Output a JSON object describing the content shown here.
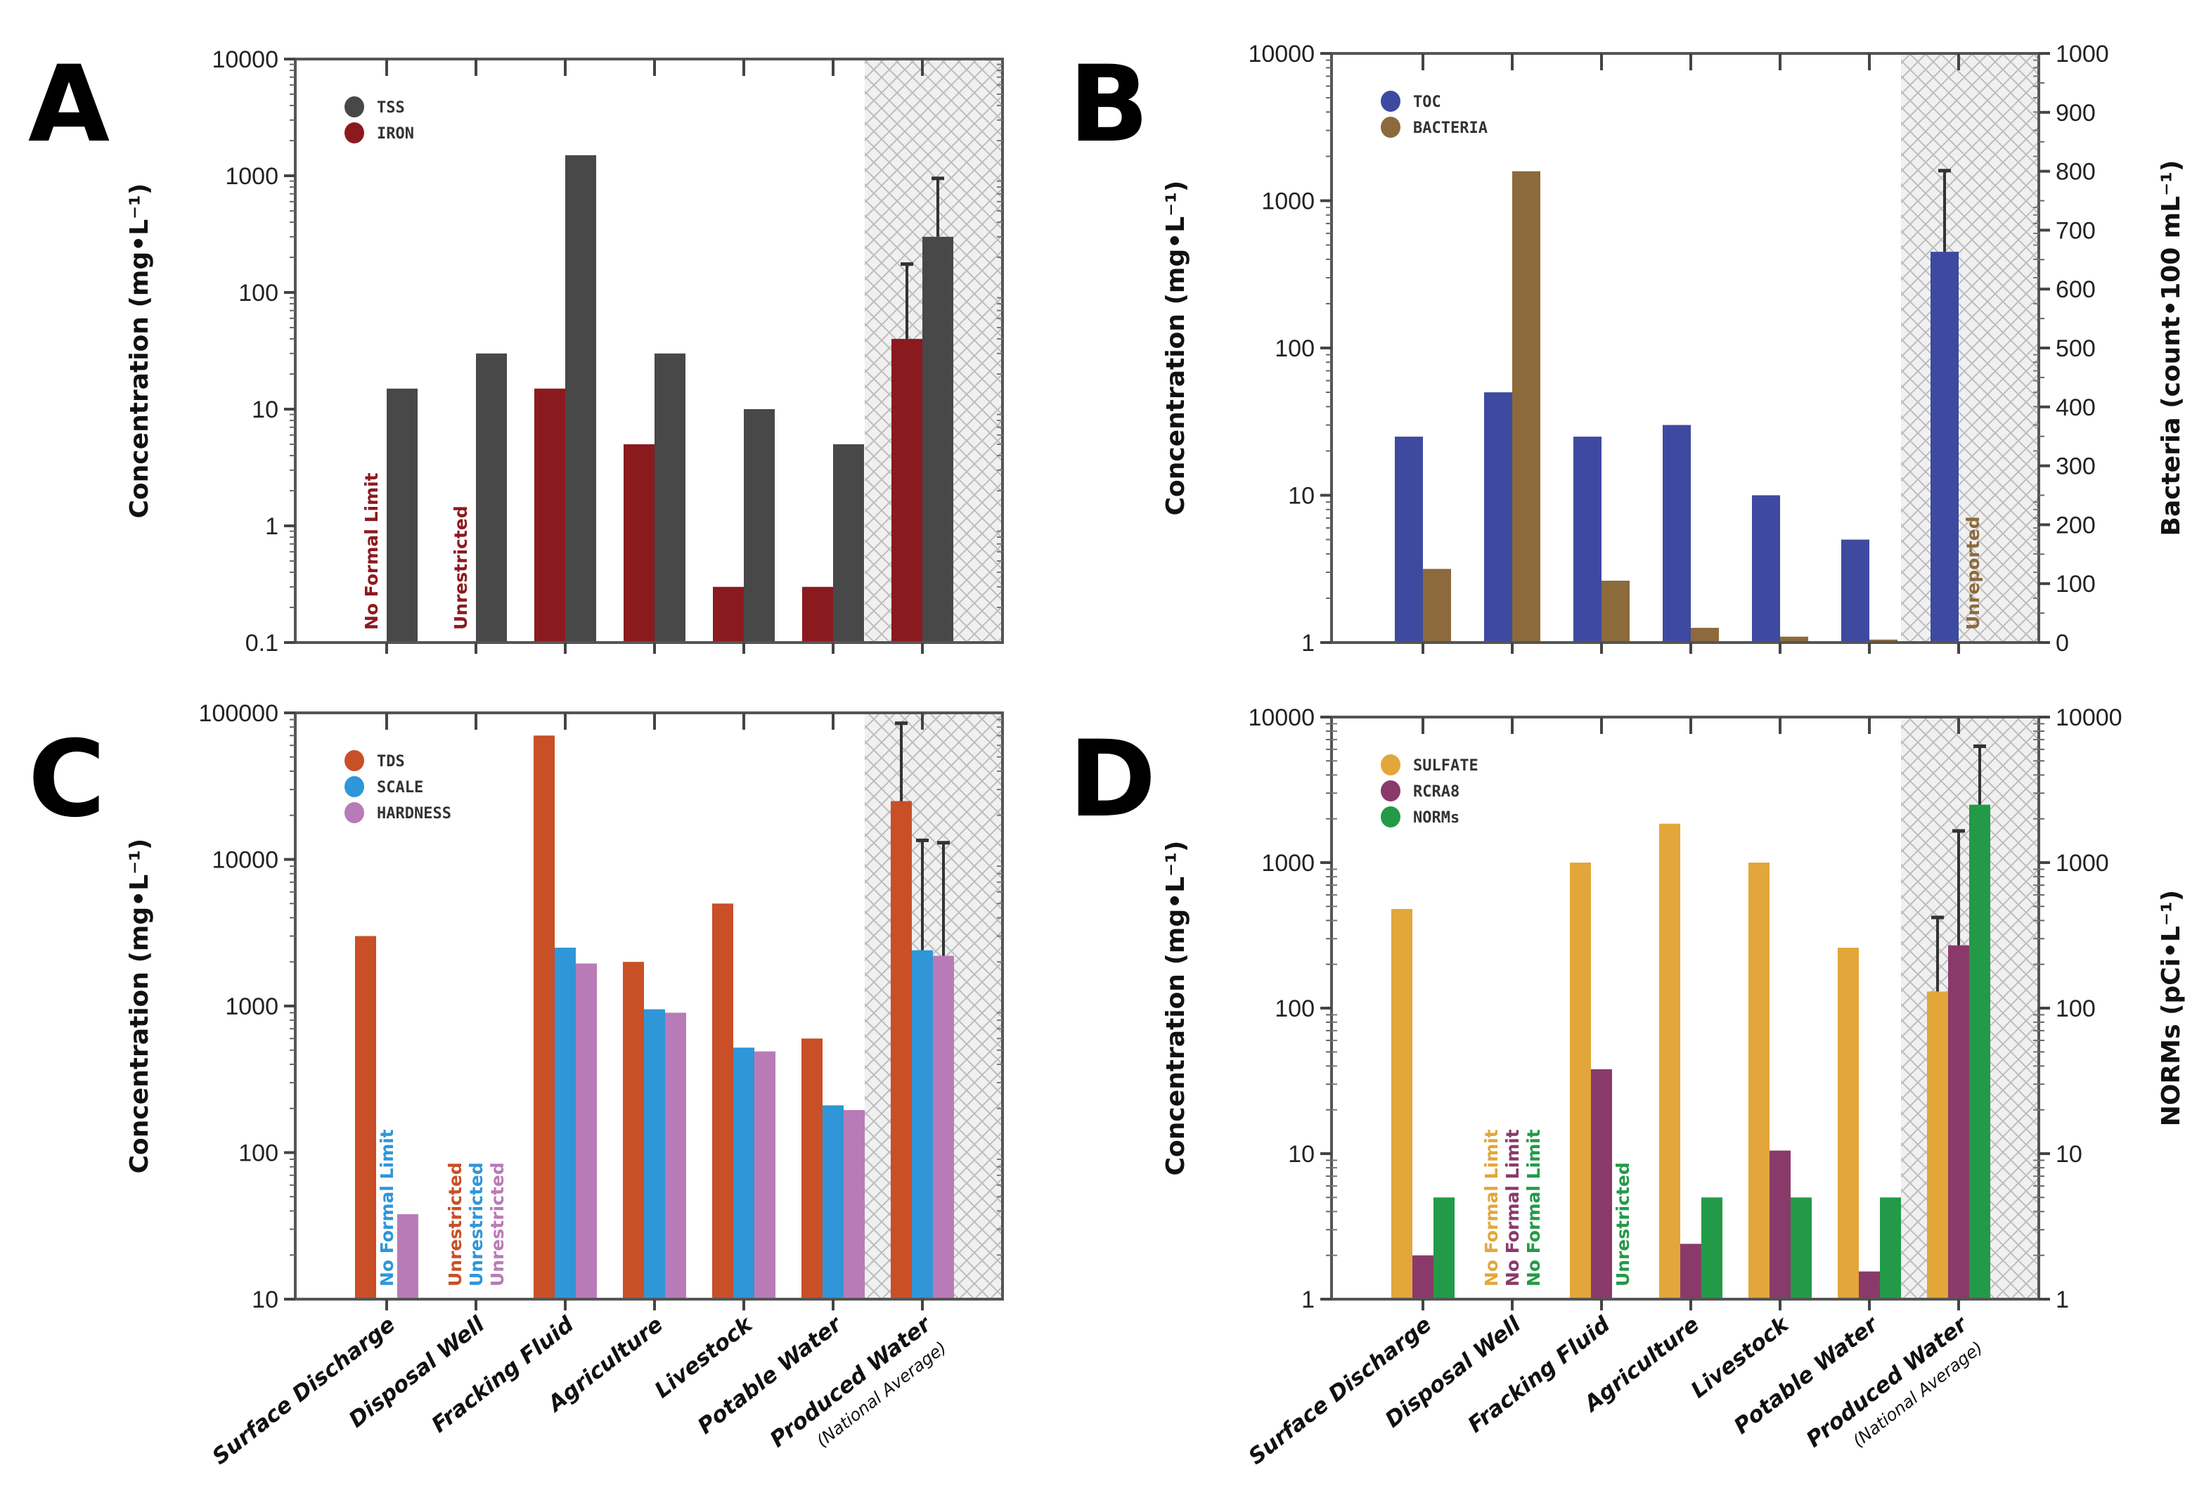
{
  "chart_data": [
    {
      "panel": "A",
      "type": "bar",
      "categories": [
        "Surface Discharge",
        "Disposal Well",
        "Fracking Fluid",
        "Agriculture",
        "Livestock",
        "Potable Water",
        "Produced Water"
      ],
      "category_sublabels": [
        "",
        "",
        "",
        "",
        "",
        "",
        "(National Average)"
      ],
      "show_xlabels": false,
      "highlighted_category": "Produced Water",
      "ylabel": "Concentration (mg•L⁻¹)",
      "yscale": "log",
      "ylim": [
        0.1,
        10000
      ],
      "yticks": [
        "0.1",
        "1",
        "10",
        "100",
        "1000",
        "10000"
      ],
      "series": [
        {
          "name": "IRON",
          "color": "#8b1a1f",
          "axis": "left",
          "values": [
            null,
            null,
            15,
            5,
            0.3,
            0.3,
            40
          ],
          "error_upper": [
            null,
            null,
            null,
            null,
            null,
            null,
            175
          ],
          "annotations": [
            "No Formal Limit",
            "Unrestricted",
            null,
            null,
            null,
            null,
            null
          ]
        },
        {
          "name": "TSS",
          "color": "#484848",
          "axis": "left",
          "values": [
            15,
            30,
            1500,
            30,
            10,
            5,
            300
          ],
          "error_upper": [
            null,
            null,
            null,
            null,
            null,
            null,
            950
          ],
          "annotations": [
            null,
            null,
            null,
            null,
            null,
            null,
            null
          ]
        }
      ],
      "legend_order": [
        1,
        0
      ]
    },
    {
      "panel": "B",
      "type": "bar",
      "categories": [
        "Surface Discharge",
        "Disposal Well",
        "Fracking Fluid",
        "Agriculture",
        "Livestock",
        "Potable Water",
        "Produced Water"
      ],
      "category_sublabels": [
        "",
        "",
        "",
        "",
        "",
        "",
        "(National Average)"
      ],
      "show_xlabels": false,
      "highlighted_category": "Produced Water",
      "ylabel": "Concentration (mg•L⁻¹)",
      "yscale": "log",
      "ylim": [
        1,
        10000
      ],
      "yticks": [
        "1",
        "10",
        "100",
        "1000",
        "10000"
      ],
      "y2label": "Bacteria (count•100 mL⁻¹)",
      "y2scale": "linear",
      "y2lim": [
        0,
        1000
      ],
      "y2ticks": [
        "0",
        "100",
        "200",
        "300",
        "400",
        "500",
        "600",
        "700",
        "800",
        "900",
        "1000"
      ],
      "series": [
        {
          "name": "TOC",
          "color": "#3d4aa0",
          "axis": "left",
          "values": [
            25,
            50,
            25,
            30,
            10,
            5,
            450
          ],
          "error_upper": [
            null,
            null,
            null,
            null,
            null,
            null,
            1600
          ],
          "annotations": [
            null,
            null,
            null,
            null,
            null,
            null,
            null
          ]
        },
        {
          "name": "BACTERIA",
          "color": "#8c6a3c",
          "axis": "right",
          "values": [
            125,
            800,
            105,
            25,
            10,
            5,
            null
          ],
          "error_upper": [
            null,
            null,
            null,
            null,
            null,
            null,
            null
          ],
          "annotations": [
            null,
            null,
            null,
            null,
            null,
            null,
            "Unreported"
          ]
        }
      ],
      "legend_order": [
        0,
        1
      ]
    },
    {
      "panel": "C",
      "type": "bar",
      "categories": [
        "Surface Discharge",
        "Disposal Well",
        "Fracking Fluid",
        "Agriculture",
        "Livestock",
        "Potable Water",
        "Produced Water"
      ],
      "category_sublabels": [
        "",
        "",
        "",
        "",
        "",
        "",
        "(National Average)"
      ],
      "show_xlabels": true,
      "highlighted_category": "Produced Water",
      "ylabel": "Concentration (mg•L⁻¹)",
      "yscale": "log",
      "ylim": [
        10,
        100000
      ],
      "yticks": [
        "10",
        "100",
        "1000",
        "10000",
        "100000"
      ],
      "series": [
        {
          "name": "TDS",
          "color": "#c94f26",
          "axis": "left",
          "values": [
            3000,
            null,
            70000,
            2000,
            5000,
            600,
            25000
          ],
          "error_upper": [
            null,
            null,
            null,
            null,
            null,
            null,
            85000
          ],
          "annotations": [
            null,
            "Unrestricted",
            null,
            null,
            null,
            null,
            null
          ]
        },
        {
          "name": "SCALE",
          "color": "#2f96d8",
          "axis": "left",
          "values": [
            null,
            null,
            2500,
            950,
            520,
            210,
            2400
          ],
          "error_upper": [
            null,
            null,
            null,
            null,
            null,
            null,
            13500
          ],
          "annotations": [
            "No Formal Limit",
            "Unrestricted",
            null,
            null,
            null,
            null,
            null
          ]
        },
        {
          "name": "HARDNESS",
          "color": "#b97bb8",
          "axis": "left",
          "values": [
            38,
            null,
            1950,
            900,
            490,
            195,
            2200
          ],
          "error_upper": [
            null,
            null,
            null,
            null,
            null,
            null,
            13000
          ],
          "annotations": [
            null,
            "Unrestricted",
            null,
            null,
            null,
            null,
            null
          ]
        }
      ],
      "legend_order": [
        0,
        1,
        2
      ]
    },
    {
      "panel": "D",
      "type": "bar",
      "categories": [
        "Surface Discharge",
        "Disposal Well",
        "Fracking Fluid",
        "Agriculture",
        "Livestock",
        "Potable Water",
        "Produced Water"
      ],
      "category_sublabels": [
        "",
        "",
        "",
        "",
        "",
        "",
        "(National Average)"
      ],
      "show_xlabels": true,
      "highlighted_category": "Produced Water",
      "ylabel": "Concentration (mg•L⁻¹)",
      "yscale": "log",
      "ylim": [
        1,
        10000
      ],
      "yticks": [
        "1",
        "10",
        "100",
        "1000",
        "10000"
      ],
      "y2label": "NORMs (pCi•L⁻¹)",
      "y2scale": "log",
      "y2lim": [
        1,
        10000
      ],
      "y2ticks": [
        "1",
        "10",
        "100",
        "1000",
        "10000"
      ],
      "series": [
        {
          "name": "SULFATE",
          "color": "#e3a63a",
          "axis": "left",
          "values": [
            480,
            null,
            1000,
            1850,
            1000,
            260,
            130
          ],
          "error_upper": [
            null,
            null,
            null,
            null,
            null,
            null,
            420
          ],
          "annotations": [
            null,
            "No Formal Limit",
            null,
            null,
            null,
            null,
            null
          ]
        },
        {
          "name": "RCRA8",
          "color": "#8a3a6a",
          "axis": "left",
          "values": [
            2,
            null,
            38,
            2.4,
            10.5,
            1.55,
            270
          ],
          "error_upper": [
            null,
            null,
            null,
            null,
            null,
            null,
            1650
          ],
          "annotations": [
            null,
            "No Formal Limit",
            null,
            null,
            null,
            null,
            null
          ]
        },
        {
          "name": "NORMs",
          "color": "#239a48",
          "axis": "right",
          "values": [
            5,
            null,
            null,
            5,
            5,
            5,
            2500
          ],
          "error_upper": [
            null,
            null,
            null,
            null,
            null,
            null,
            6300
          ],
          "annotations": [
            null,
            "No Formal Limit",
            "Unrestricted",
            null,
            null,
            null,
            null
          ]
        }
      ],
      "legend_order": [
        0,
        1,
        2
      ]
    }
  ]
}
